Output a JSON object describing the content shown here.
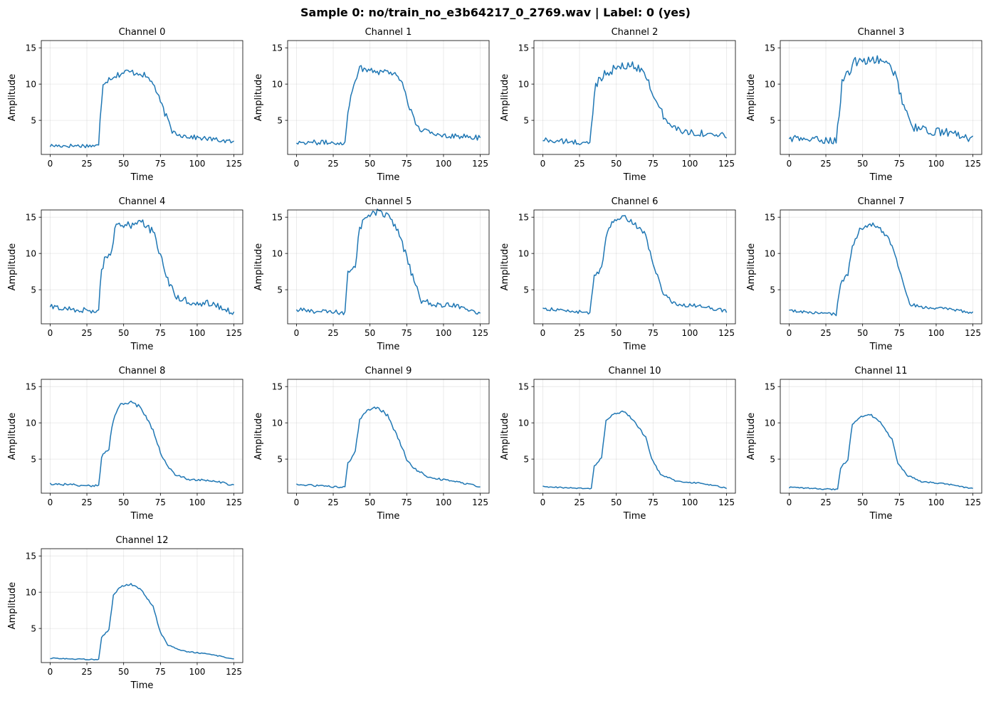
{
  "figure": {
    "title": "Sample 0: no/train_no_e3b64217_0_2769.wav | Label: 0 (yes)"
  },
  "chart_data": {
    "type": "line",
    "title": "Sample 0: no/train_no_e3b64217_0_2769.wav | Label: 0 (yes)",
    "xlabel": "Time",
    "ylabel": "Amplitude",
    "xlim": [
      -6,
      131
    ],
    "ylim": [
      0.3,
      16
    ],
    "x_ticks": [
      0,
      25,
      50,
      75,
      100,
      125
    ],
    "y_ticks": [
      5,
      10,
      15
    ],
    "grid": true,
    "line_color": "#1f77b4",
    "keypoints_note": "piecewise keypoints [x, amplitude]; plotted series sampled at x = 0..125",
    "panels": [
      {
        "title": "Channel 0",
        "base": 1.6,
        "noise": 0.45,
        "points": [
          [
            0,
            1.5
          ],
          [
            33,
            1.5
          ],
          [
            34,
            5
          ],
          [
            36,
            10.2
          ],
          [
            42,
            11
          ],
          [
            52,
            11.7
          ],
          [
            62,
            11.5
          ],
          [
            70,
            10.2
          ],
          [
            74,
            8
          ],
          [
            80,
            5
          ],
          [
            83,
            3.5
          ],
          [
            90,
            2.9
          ],
          [
            100,
            2.6
          ],
          [
            110,
            2.4
          ],
          [
            125,
            2.0
          ]
        ]
      },
      {
        "title": "Channel 1",
        "base": 1.8,
        "noise": 0.5,
        "points": [
          [
            0,
            2.0
          ],
          [
            33,
            1.9
          ],
          [
            35,
            6
          ],
          [
            38,
            9.5
          ],
          [
            43,
            12.2
          ],
          [
            55,
            11.8
          ],
          [
            66,
            11.6
          ],
          [
            72,
            10.3
          ],
          [
            77,
            6.7
          ],
          [
            82,
            4
          ],
          [
            90,
            3.3
          ],
          [
            100,
            3.0
          ],
          [
            110,
            2.8
          ],
          [
            125,
            2.6
          ]
        ]
      },
      {
        "title": "Channel 2",
        "base": 1.8,
        "noise": 0.6,
        "points": [
          [
            0,
            2.3
          ],
          [
            32,
            1.8
          ],
          [
            34,
            6
          ],
          [
            36,
            10
          ],
          [
            42,
            11.5
          ],
          [
            50,
            12.2
          ],
          [
            60,
            12.6
          ],
          [
            66,
            12.2
          ],
          [
            72,
            10.5
          ],
          [
            77,
            7.5
          ],
          [
            85,
            4.5
          ],
          [
            95,
            3.5
          ],
          [
            110,
            3.2
          ],
          [
            125,
            2.8
          ]
        ]
      },
      {
        "title": "Channel 3",
        "base": 2.0,
        "noise": 0.7,
        "points": [
          [
            0,
            2.5
          ],
          [
            32,
            2.2
          ],
          [
            34,
            6
          ],
          [
            36,
            10.2
          ],
          [
            40,
            11.5
          ],
          [
            45,
            13
          ],
          [
            55,
            13.5
          ],
          [
            65,
            13
          ],
          [
            72,
            11.5
          ],
          [
            77,
            7.8
          ],
          [
            80,
            6
          ],
          [
            85,
            4
          ],
          [
            95,
            3.5
          ],
          [
            110,
            3.3
          ],
          [
            125,
            2.4
          ]
        ]
      },
      {
        "title": "Channel 4",
        "base": 1.9,
        "noise": 0.6,
        "points": [
          [
            0,
            2.6
          ],
          [
            33,
            2
          ],
          [
            35,
            8
          ],
          [
            38,
            9.6
          ],
          [
            42,
            10.5
          ],
          [
            44,
            13.5
          ],
          [
            55,
            14
          ],
          [
            62,
            14.6
          ],
          [
            70,
            13
          ],
          [
            75,
            9.5
          ],
          [
            80,
            6.5
          ],
          [
            85,
            4
          ],
          [
            95,
            3.3
          ],
          [
            110,
            3.1
          ],
          [
            125,
            1.8
          ]
        ]
      },
      {
        "title": "Channel 5",
        "base": 1.8,
        "noise": 0.5,
        "points": [
          [
            0,
            2.2
          ],
          [
            33,
            1.8
          ],
          [
            35,
            7.5
          ],
          [
            40,
            8.5
          ],
          [
            43,
            13.5
          ],
          [
            47,
            15
          ],
          [
            55,
            15.7
          ],
          [
            62,
            15.2
          ],
          [
            68,
            13.5
          ],
          [
            75,
            9.5
          ],
          [
            80,
            6
          ],
          [
            85,
            3.5
          ],
          [
            95,
            2.9
          ],
          [
            110,
            2.8
          ],
          [
            125,
            1.8
          ]
        ]
      },
      {
        "title": "Channel 6",
        "base": 1.8,
        "noise": 0.35,
        "points": [
          [
            0,
            2.4
          ],
          [
            32,
            1.8
          ],
          [
            35,
            6.8
          ],
          [
            40,
            8.0
          ],
          [
            43,
            12.5
          ],
          [
            48,
            14.5
          ],
          [
            55,
            15
          ],
          [
            60,
            14.5
          ],
          [
            70,
            12.5
          ],
          [
            75,
            8.5
          ],
          [
            78,
            6.8
          ],
          [
            82,
            4.5
          ],
          [
            90,
            3.0
          ],
          [
            110,
            2.7
          ],
          [
            125,
            2.0
          ]
        ]
      },
      {
        "title": "Channel 7",
        "base": 1.6,
        "noise": 0.3,
        "points": [
          [
            0,
            2.1
          ],
          [
            32,
            1.6
          ],
          [
            35,
            6
          ],
          [
            40,
            7
          ],
          [
            43,
            11
          ],
          [
            48,
            13.2
          ],
          [
            55,
            14
          ],
          [
            60,
            13.8
          ],
          [
            68,
            12
          ],
          [
            72,
            10
          ],
          [
            78,
            5.5
          ],
          [
            82,
            3
          ],
          [
            90,
            2.6
          ],
          [
            110,
            2.3
          ],
          [
            125,
            1.8
          ]
        ]
      },
      {
        "title": "Channel 8",
        "base": 1.3,
        "noise": 0.25,
        "points": [
          [
            0,
            1.6
          ],
          [
            33,
            1.3
          ],
          [
            35,
            5.3
          ],
          [
            40,
            6.5
          ],
          [
            43,
            10.5
          ],
          [
            48,
            12.5
          ],
          [
            55,
            13
          ],
          [
            62,
            12
          ],
          [
            70,
            9
          ],
          [
            75,
            6
          ],
          [
            80,
            4
          ],
          [
            85,
            2.8
          ],
          [
            95,
            2.2
          ],
          [
            110,
            2.0
          ],
          [
            125,
            1.4
          ]
        ]
      },
      {
        "title": "Channel 9",
        "base": 1.1,
        "noise": 0.2,
        "points": [
          [
            0,
            1.5
          ],
          [
            33,
            1.1
          ],
          [
            35,
            4.5
          ],
          [
            40,
            6
          ],
          [
            43,
            10.5
          ],
          [
            48,
            11.7
          ],
          [
            55,
            12.2
          ],
          [
            62,
            11
          ],
          [
            70,
            7.5
          ],
          [
            75,
            5
          ],
          [
            80,
            3.7
          ],
          [
            90,
            2.5
          ],
          [
            110,
            1.8
          ],
          [
            125,
            1.2
          ]
        ]
      },
      {
        "title": "Channel 10",
        "base": 0.95,
        "noise": 0.15,
        "points": [
          [
            0,
            1.2
          ],
          [
            33,
            0.9
          ],
          [
            35,
            4
          ],
          [
            40,
            5.2
          ],
          [
            43,
            10.2
          ],
          [
            48,
            11.2
          ],
          [
            55,
            11.6
          ],
          [
            62,
            10.3
          ],
          [
            70,
            8
          ],
          [
            74,
            5
          ],
          [
            80,
            2.9
          ],
          [
            90,
            2.0
          ],
          [
            110,
            1.6
          ],
          [
            125,
            1.0
          ]
        ]
      },
      {
        "title": "Channel 11",
        "base": 0.9,
        "noise": 0.15,
        "points": [
          [
            0,
            1.1
          ],
          [
            33,
            0.8
          ],
          [
            35,
            3.8
          ],
          [
            40,
            5.0
          ],
          [
            43,
            9.8
          ],
          [
            48,
            10.8
          ],
          [
            55,
            11.2
          ],
          [
            62,
            10.0
          ],
          [
            70,
            7.7
          ],
          [
            74,
            4.4
          ],
          [
            80,
            2.8
          ],
          [
            90,
            1.9
          ],
          [
            110,
            1.5
          ],
          [
            125,
            0.9
          ]
        ]
      },
      {
        "title": "Channel 12",
        "base": 0.8,
        "noise": 0.12,
        "points": [
          [
            0,
            0.9
          ],
          [
            33,
            0.7
          ],
          [
            35,
            3.8
          ],
          [
            40,
            4.8
          ],
          [
            43,
            9.5
          ],
          [
            48,
            10.8
          ],
          [
            55,
            11.1
          ],
          [
            62,
            10.3
          ],
          [
            70,
            8
          ],
          [
            75,
            4.5
          ],
          [
            80,
            2.7
          ],
          [
            90,
            1.9
          ],
          [
            110,
            1.4
          ],
          [
            125,
            0.8
          ]
        ]
      }
    ]
  }
}
